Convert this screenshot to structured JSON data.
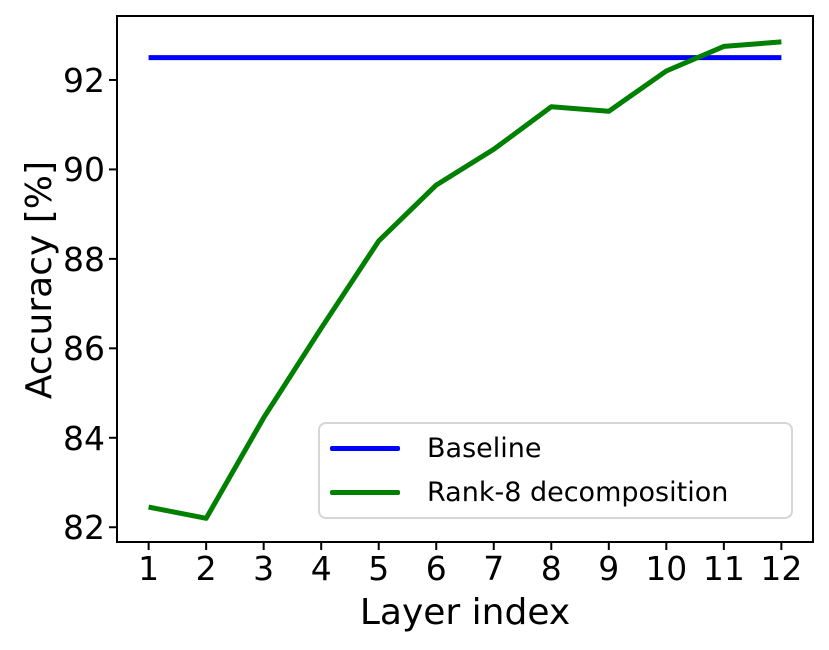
{
  "chart_data": {
    "type": "line",
    "title": "",
    "xlabel": "Layer index",
    "ylabel": "Accuracy [%]",
    "x": [
      1,
      2,
      3,
      4,
      5,
      6,
      7,
      8,
      9,
      10,
      11,
      12
    ],
    "series": [
      {
        "name": "Baseline",
        "color": "#0000ff",
        "values": [
          92.5,
          92.5,
          92.5,
          92.5,
          92.5,
          92.5,
          92.5,
          92.5,
          92.5,
          92.5,
          92.5,
          92.5
        ]
      },
      {
        "name": "Rank-8 decomposition",
        "color": "#008000",
        "values": [
          82.45,
          82.2,
          84.45,
          86.45,
          88.4,
          89.65,
          90.45,
          91.4,
          91.3,
          92.2,
          92.75,
          92.85
        ]
      }
    ],
    "xticks": [
      1,
      2,
      3,
      4,
      5,
      6,
      7,
      8,
      9,
      10,
      11,
      12
    ],
    "yticks": [
      82,
      84,
      86,
      88,
      90,
      92
    ],
    "xlim": [
      0.45,
      12.55
    ],
    "ylim": [
      81.67,
      93.43
    ],
    "grid": false,
    "legend_position": "lower center",
    "axis_color": "#000000",
    "background_color": "#ffffff"
  }
}
